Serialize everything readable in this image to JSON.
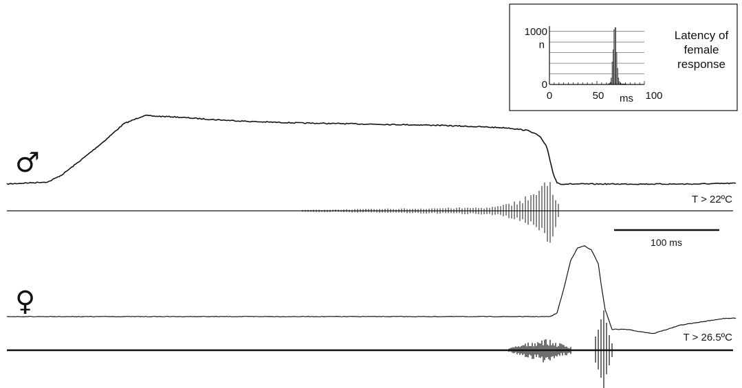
{
  "chart_data": [
    {
      "type": "line",
      "series": [
        {
          "name": "♂",
          "symbol": "♂",
          "traces": [
            {
              "kind": "envelope",
              "x": [
                0,
                20,
                40,
                60,
                80,
                110,
                140,
                170,
                200,
                210,
                240,
                300,
                360,
                430,
                500,
                560,
                620,
                680,
                730,
                760,
                775,
                785,
                790,
                795,
                800,
                805,
                810,
                830,
                900,
                1000,
                1060
              ],
              "y": [
                0.02,
                0.03,
                0.04,
                0.05,
                0.15,
                0.38,
                0.62,
                0.88,
                1.0,
                0.99,
                0.98,
                0.94,
                0.91,
                0.89,
                0.88,
                0.87,
                0.86,
                0.84,
                0.82,
                0.78,
                0.7,
                0.55,
                0.35,
                0.15,
                0.04,
                0.02,
                0.02,
                0.02,
                0.02,
                0.02,
                0.03
              ]
            },
            {
              "kind": "spikes",
              "label": "T > 22ºC"
            }
          ]
        },
        {
          "name": "♀",
          "symbol": "♀",
          "traces": [
            {
              "kind": "envelope",
              "x": [
                0,
                200,
                400,
                600,
                700,
                790,
                800,
                810,
                820,
                830,
                840,
                850,
                860,
                865,
                870,
                880,
                900,
                940,
                980,
                1040,
                1060
              ],
              "y": [
                0.0,
                0.0,
                0.0,
                0.0,
                0.0,
                0.0,
                0.05,
                0.4,
                0.8,
                0.97,
                1.0,
                0.94,
                0.75,
                0.4,
                0.1,
                -0.18,
                -0.18,
                -0.24,
                -0.12,
                -0.03,
                -0.02
              ]
            },
            {
              "kind": "spikes",
              "label": "T > 26.5ºC"
            }
          ]
        }
      ],
      "scale_bar": {
        "value": 100,
        "unit": "ms",
        "label": "100 ms"
      }
    },
    {
      "type": "bar",
      "title_lines": [
        "Latency of",
        "female",
        "response"
      ],
      "xlabel": "ms",
      "ylabel": "n",
      "xlim": [
        0,
        100
      ],
      "ylim": [
        0,
        1100
      ],
      "x_ticks": [
        "0",
        "50",
        "100"
      ],
      "y_ticks": [
        "0",
        "1000"
      ],
      "grid": true,
      "bins_ms": [
        62,
        63,
        64,
        65,
        66,
        67,
        68,
        69,
        70,
        71,
        72,
        73,
        74,
        75,
        76,
        77,
        78,
        79,
        80
      ],
      "counts": [
        10,
        20,
        40,
        120,
        420,
        650,
        1030,
        1070,
        600,
        300,
        120,
        50,
        20,
        10,
        5,
        10,
        5,
        10,
        5
      ]
    }
  ]
}
